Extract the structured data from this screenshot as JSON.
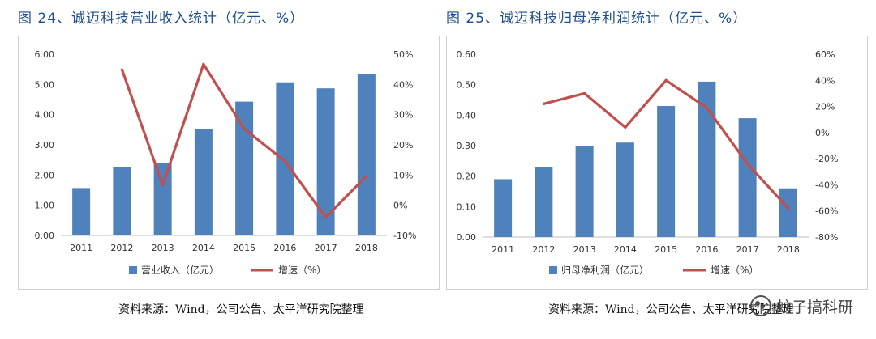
{
  "left_panel": {
    "title": "图 24、诚迈科技营业收入统计（亿元、%）",
    "source": "资料来源：Wind，公司公告、太平洋研究院整理"
  },
  "right_panel": {
    "title": "图 25、诚迈科技归母净利润统计（亿元、%）",
    "source": "资料来源：Wind，公司公告、太平洋研究院整理"
  },
  "watermark": "蚊子搞科研",
  "chart_data": [
    {
      "type": "bar",
      "categories": [
        "2011",
        "2012",
        "2013",
        "2014",
        "2015",
        "2016",
        "2017",
        "2018"
      ],
      "series": [
        {
          "name": "营业收入（亿元）",
          "type": "bar",
          "axis": "left",
          "color": "#4f81bd",
          "values": [
            1.57,
            2.25,
            2.4,
            3.53,
            4.43,
            5.07,
            4.87,
            5.34
          ]
        },
        {
          "name": "增速（%）",
          "type": "line",
          "axis": "right",
          "color": "#c0504d",
          "values": [
            null,
            44.9,
            6.7,
            46.7,
            25.3,
            14.6,
            -4.0,
            9.7
          ]
        }
      ],
      "ylim_left": [
        0,
        6
      ],
      "yticks_left": [
        "0.00",
        "1.00",
        "2.00",
        "3.00",
        "4.00",
        "5.00",
        "6.00"
      ],
      "ylim_right": [
        -10,
        50
      ],
      "yticks_right": [
        "-10%",
        "0%",
        "10%",
        "20%",
        "30%",
        "40%",
        "50%"
      ],
      "legend_position": "bottom"
    },
    {
      "type": "bar",
      "categories": [
        "2011",
        "2012",
        "2013",
        "2014",
        "2015",
        "2016",
        "2017",
        "2018"
      ],
      "series": [
        {
          "name": "归母净利润（亿元）",
          "type": "bar",
          "axis": "left",
          "color": "#4f81bd",
          "values": [
            0.19,
            0.23,
            0.3,
            0.31,
            0.43,
            0.51,
            0.39,
            0.16
          ]
        },
        {
          "name": "增速（%）",
          "type": "line",
          "axis": "right",
          "color": "#c0504d",
          "values": [
            null,
            22,
            30,
            4,
            40,
            19,
            -24,
            -58
          ]
        }
      ],
      "ylim_left": [
        0,
        0.6
      ],
      "yticks_left": [
        "0.00",
        "0.10",
        "0.20",
        "0.30",
        "0.40",
        "0.50",
        "0.60"
      ],
      "ylim_right": [
        -80,
        60
      ],
      "yticks_right": [
        "-80%",
        "-60%",
        "-40%",
        "-20%",
        "0%",
        "20%",
        "40%",
        "60%"
      ],
      "legend_position": "bottom"
    }
  ]
}
